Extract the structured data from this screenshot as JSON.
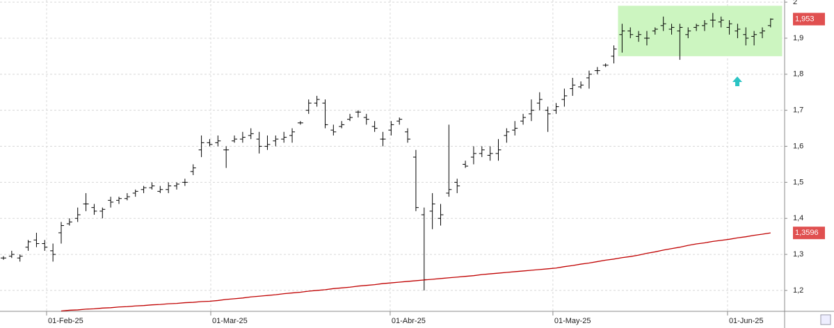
{
  "chart_data": {
    "type": "ohlc",
    "ylim": [
      1.142,
      2.006
    ],
    "yticks": [
      {
        "value": 2,
        "label": "2"
      },
      {
        "value": 1.9,
        "label": "1,9"
      },
      {
        "value": 1.8,
        "label": "1,8"
      },
      {
        "value": 1.7,
        "label": "1,7"
      },
      {
        "value": 1.6,
        "label": "1,6"
      },
      {
        "value": 1.5,
        "label": "1,5"
      },
      {
        "value": 1.4,
        "label": "1,4"
      },
      {
        "value": 1.3,
        "label": "1,3"
      },
      {
        "value": 1.2,
        "label": "1,2"
      }
    ],
    "xlim": [
      -0.42,
      94.7
    ],
    "xticks": [
      {
        "value": 5.23,
        "label": "01-Feb-25"
      },
      {
        "value": 25.13,
        "label": "01-Mar-25"
      },
      {
        "value": 46.88,
        "label": "01-Abr-25"
      },
      {
        "value": 66.61,
        "label": "01-May-25"
      },
      {
        "value": 87.78,
        "label": "01-Jun-25"
      }
    ],
    "grid": true,
    "highlight_range": {
      "xlim": [
        74.5,
        94.4
      ],
      "ylim": [
        1.85,
        1.99
      ],
      "color": "#ccf5c0"
    },
    "series": [
      {
        "type": "ohlc",
        "color": "#000000",
        "last_value_label": "1,953",
        "label_color": "#e05050",
        "open": [
          1.29,
          1.295,
          1.29,
          1.32,
          1.34,
          1.33,
          1.31,
          1.36,
          1.385,
          1.4,
          1.44,
          1.43,
          1.42,
          1.45,
          1.45,
          1.455,
          1.47,
          1.48,
          1.485,
          1.475,
          1.48,
          1.49,
          1.5,
          1.53,
          1.59,
          1.61,
          1.61,
          1.59,
          1.615,
          1.62,
          1.63,
          1.62,
          1.6,
          1.615,
          1.62,
          1.63,
          1.665,
          1.7,
          1.72,
          1.72,
          1.645,
          1.655,
          1.675,
          1.695,
          1.68,
          1.655,
          1.62,
          1.645,
          1.67,
          1.64,
          1.57,
          1.41,
          1.42,
          1.4,
          1.47,
          1.5,
          1.55,
          1.57,
          1.58,
          1.575,
          1.58,
          1.63,
          1.645,
          1.67,
          1.69,
          1.72,
          1.7,
          1.7,
          1.73,
          1.76,
          1.765,
          1.79,
          1.81,
          1.825,
          1.85,
          1.91,
          1.92,
          1.905,
          1.9,
          1.92,
          1.935,
          1.925,
          1.92,
          1.91,
          1.93,
          1.935,
          1.95,
          1.945,
          1.93,
          1.92,
          1.91,
          1.905,
          1.915,
          1.935
        ],
        "high": [
          1.295,
          1.31,
          1.3,
          1.34,
          1.36,
          1.34,
          1.33,
          1.39,
          1.4,
          1.43,
          1.47,
          1.44,
          1.43,
          1.46,
          1.46,
          1.47,
          1.48,
          1.49,
          1.5,
          1.49,
          1.5,
          1.5,
          1.51,
          1.55,
          1.63,
          1.62,
          1.63,
          1.6,
          1.63,
          1.64,
          1.65,
          1.64,
          1.63,
          1.63,
          1.64,
          1.65,
          1.67,
          1.73,
          1.74,
          1.73,
          1.66,
          1.67,
          1.69,
          1.7,
          1.69,
          1.67,
          1.64,
          1.67,
          1.68,
          1.65,
          1.59,
          1.43,
          1.47,
          1.44,
          1.66,
          1.51,
          1.56,
          1.6,
          1.6,
          1.6,
          1.62,
          1.65,
          1.67,
          1.69,
          1.73,
          1.75,
          1.71,
          1.72,
          1.76,
          1.79,
          1.78,
          1.81,
          1.82,
          1.83,
          1.88,
          1.94,
          1.93,
          1.92,
          1.92,
          1.93,
          1.96,
          1.94,
          1.94,
          1.93,
          1.94,
          1.95,
          1.97,
          1.96,
          1.95,
          1.94,
          1.93,
          1.92,
          1.93,
          1.955
        ],
        "low": [
          1.285,
          1.29,
          1.28,
          1.31,
          1.32,
          1.31,
          1.28,
          1.33,
          1.38,
          1.39,
          1.42,
          1.41,
          1.4,
          1.43,
          1.44,
          1.45,
          1.46,
          1.47,
          1.48,
          1.47,
          1.47,
          1.48,
          1.49,
          1.52,
          1.57,
          1.6,
          1.6,
          1.54,
          1.61,
          1.61,
          1.62,
          1.58,
          1.59,
          1.6,
          1.61,
          1.61,
          1.66,
          1.69,
          1.71,
          1.65,
          1.63,
          1.65,
          1.67,
          1.68,
          1.66,
          1.64,
          1.6,
          1.63,
          1.66,
          1.61,
          1.42,
          1.2,
          1.37,
          1.38,
          1.46,
          1.47,
          1.54,
          1.55,
          1.57,
          1.56,
          1.56,
          1.61,
          1.63,
          1.66,
          1.67,
          1.7,
          1.64,
          1.69,
          1.71,
          1.74,
          1.76,
          1.76,
          1.8,
          1.82,
          1.83,
          1.86,
          1.9,
          1.89,
          1.88,
          1.91,
          1.92,
          1.91,
          1.84,
          1.9,
          1.92,
          1.92,
          1.93,
          1.93,
          1.91,
          1.9,
          1.88,
          1.88,
          1.9,
          1.93
        ],
        "close": [
          1.29,
          1.3,
          1.295,
          1.335,
          1.33,
          1.32,
          1.3,
          1.38,
          1.39,
          1.41,
          1.44,
          1.42,
          1.425,
          1.445,
          1.455,
          1.46,
          1.475,
          1.485,
          1.49,
          1.48,
          1.49,
          1.495,
          1.5,
          1.54,
          1.61,
          1.605,
          1.615,
          1.59,
          1.62,
          1.625,
          1.635,
          1.6,
          1.605,
          1.62,
          1.625,
          1.64,
          1.665,
          1.72,
          1.73,
          1.66,
          1.64,
          1.66,
          1.68,
          1.695,
          1.675,
          1.65,
          1.62,
          1.66,
          1.675,
          1.62,
          1.43,
          1.23,
          1.44,
          1.41,
          1.48,
          1.49,
          1.545,
          1.58,
          1.59,
          1.58,
          1.59,
          1.64,
          1.65,
          1.68,
          1.7,
          1.73,
          1.69,
          1.71,
          1.74,
          1.77,
          1.77,
          1.8,
          1.81,
          1.825,
          1.87,
          1.92,
          1.91,
          1.91,
          1.9,
          1.925,
          1.94,
          1.93,
          1.93,
          1.92,
          1.935,
          1.94,
          1.95,
          1.95,
          1.94,
          1.925,
          1.9,
          1.91,
          1.92,
          1.953
        ]
      },
      {
        "type": "line",
        "color": "#c00000",
        "last_value_label": "1,3596",
        "label_color": "#e05050",
        "values": [
          null,
          null,
          null,
          null,
          null,
          null,
          null,
          1.143,
          1.145,
          1.146,
          1.148,
          1.149,
          1.151,
          1.152,
          1.154,
          1.155,
          1.157,
          1.158,
          1.16,
          1.161,
          1.163,
          1.164,
          1.166,
          1.167,
          1.169,
          1.17,
          1.172,
          1.175,
          1.177,
          1.179,
          1.182,
          1.184,
          1.186,
          1.188,
          1.191,
          1.193,
          1.195,
          1.198,
          1.2,
          1.202,
          1.205,
          1.207,
          1.209,
          1.212,
          1.214,
          1.216,
          1.219,
          1.221,
          1.223,
          1.225,
          1.227,
          1.229,
          1.231,
          1.233,
          1.235,
          1.237,
          1.239,
          1.241,
          1.244,
          1.246,
          1.248,
          1.25,
          1.252,
          1.254,
          1.256,
          1.258,
          1.26,
          1.262,
          1.266,
          1.269,
          1.273,
          1.276,
          1.28,
          1.284,
          1.287,
          1.291,
          1.294,
          1.298,
          1.303,
          1.307,
          1.312,
          1.316,
          1.32,
          1.325,
          1.329,
          1.332,
          1.336,
          1.339,
          1.342,
          1.346,
          1.349,
          1.353,
          1.356,
          1.3596
        ]
      }
    ]
  }
}
